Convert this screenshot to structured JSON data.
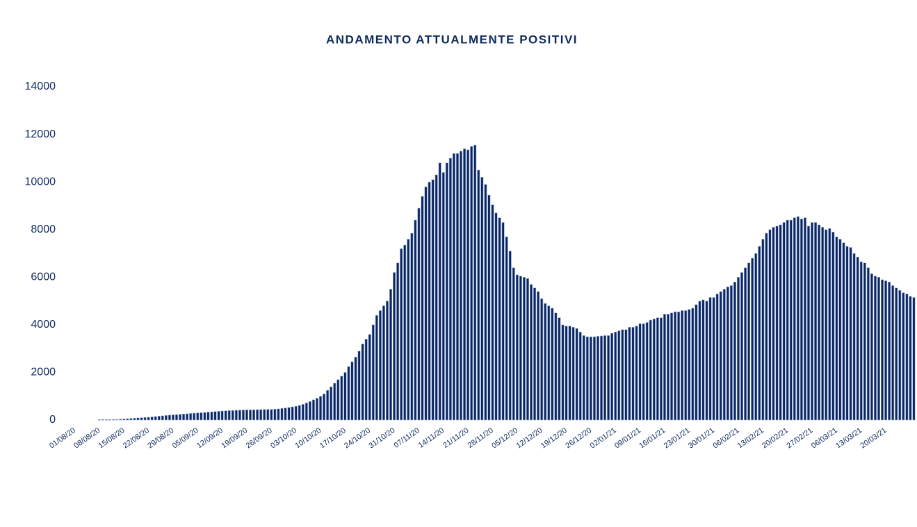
{
  "chart_data": {
    "type": "bar",
    "title": "ANDAMENTO  ATTUALMENTE  POSITIVI",
    "color": "#0b2560",
    "categories": [
      "01/08/20",
      null,
      null,
      null,
      null,
      null,
      null,
      "08/08/20",
      null,
      null,
      null,
      null,
      null,
      null,
      "15/08/20",
      null,
      null,
      null,
      null,
      null,
      null,
      "22/08/20",
      null,
      null,
      null,
      null,
      null,
      null,
      "29/08/20",
      null,
      null,
      null,
      null,
      null,
      null,
      "05/09/20",
      null,
      null,
      null,
      null,
      null,
      null,
      "12/09/20",
      null,
      null,
      null,
      null,
      null,
      null,
      "19/09/20",
      null,
      null,
      null,
      null,
      null,
      null,
      "26/09/20",
      null,
      null,
      null,
      null,
      null,
      null,
      "03/10/20",
      null,
      null,
      null,
      null,
      null,
      null,
      "10/10/20",
      null,
      null,
      null,
      null,
      null,
      null,
      "17/10/20",
      null,
      null,
      null,
      null,
      null,
      null,
      "24/10/20",
      null,
      null,
      null,
      null,
      null,
      null,
      "31/10/20",
      null,
      null,
      null,
      null,
      null,
      null,
      "07/11/20",
      null,
      null,
      null,
      null,
      null,
      null,
      "14/11/20",
      null,
      null,
      null,
      null,
      null,
      null,
      "21/11/20",
      null,
      null,
      null,
      null,
      null,
      null,
      "28/11/20",
      null,
      null,
      null,
      null,
      null,
      null,
      "05/12/20",
      null,
      null,
      null,
      null,
      null,
      null,
      "12/12/20",
      null,
      null,
      null,
      null,
      null,
      null,
      "19/12/20",
      null,
      null,
      null,
      null,
      null,
      null,
      "26/12/20",
      null,
      null,
      null,
      null,
      null,
      null,
      "02/01/21",
      null,
      null,
      null,
      null,
      null,
      null,
      "09/01/21",
      null,
      null,
      null,
      null,
      null,
      null,
      "16/01/21",
      null,
      null,
      null,
      null,
      null,
      null,
      "23/01/21",
      null,
      null,
      null,
      null,
      null,
      null,
      "30/01/21",
      null,
      null,
      null,
      null,
      null,
      null,
      "06/02/21",
      null,
      null,
      null,
      null,
      null,
      null,
      "13/02/21",
      null,
      null,
      null,
      null,
      null,
      null,
      "20/02/21",
      null,
      null,
      null,
      null,
      null,
      null,
      "27/02/21",
      null,
      null,
      null,
      null,
      null,
      null,
      "06/03/21",
      null,
      null,
      null,
      null,
      null,
      null,
      "13/03/21",
      null,
      null,
      null,
      null,
      null,
      null,
      "20/03/21",
      null,
      null,
      null,
      null,
      null,
      null,
      null,
      null
    ],
    "values": [
      null,
      null,
      null,
      null,
      null,
      null,
      null,
      20,
      20,
      20,
      25,
      25,
      30,
      40,
      50,
      60,
      70,
      80,
      90,
      100,
      110,
      120,
      135,
      150,
      165,
      180,
      195,
      210,
      220,
      230,
      245,
      255,
      265,
      280,
      290,
      300,
      310,
      320,
      335,
      345,
      360,
      370,
      380,
      390,
      400,
      405,
      415,
      420,
      425,
      430,
      430,
      435,
      440,
      440,
      445,
      450,
      450,
      460,
      470,
      490,
      510,
      530,
      555,
      580,
      620,
      660,
      720,
      780,
      850,
      920,
      1000,
      1100,
      1250,
      1400,
      1550,
      1700,
      1850,
      2000,
      2250,
      2450,
      2650,
      2900,
      3200,
      3400,
      3600,
      4000,
      4400,
      4600,
      4800,
      5000,
      5500,
      6200,
      6600,
      7200,
      7350,
      7600,
      7850,
      8400,
      8900,
      9400,
      9800,
      10000,
      10100,
      10300,
      10800,
      10400,
      10800,
      11000,
      11200,
      11200,
      11300,
      11400,
      11350,
      11500,
      11550,
      10500,
      10200,
      9900,
      9450,
      9050,
      8700,
      8500,
      8300,
      7700,
      7100,
      6400,
      6100,
      6050,
      6000,
      5950,
      5700,
      5550,
      5400,
      5100,
      4900,
      4800,
      4700,
      4500,
      4300,
      4000,
      3950,
      3950,
      3900,
      3850,
      3700,
      3550,
      3500,
      3500,
      3500,
      3520,
      3530,
      3550,
      3550,
      3650,
      3700,
      3750,
      3800,
      3800,
      3900,
      3900,
      3950,
      4050,
      4050,
      4100,
      4200,
      4250,
      4300,
      4300,
      4450,
      4450,
      4500,
      4550,
      4550,
      4600,
      4600,
      4650,
      4700,
      4850,
      5000,
      5050,
      5000,
      5150,
      5150,
      5300,
      5400,
      5500,
      5600,
      5650,
      5800,
      6000,
      6200,
      6400,
      6600,
      6800,
      7000,
      7300,
      7600,
      7850,
      8000,
      8100,
      8150,
      8200,
      8300,
      8400,
      8400,
      8500,
      8550,
      8450,
      8500,
      8150,
      8300,
      8300,
      8200,
      8100,
      8000,
      8050,
      7900,
      7700,
      7600,
      7450,
      7300,
      7250,
      7000,
      6850,
      6650,
      6600,
      6400,
      6150,
      6050,
      6000,
      5900,
      5850,
      5800,
      5650,
      5550,
      5450,
      5350,
      5300,
      5200,
      5150
    ],
    "ylim": [
      0,
      14000
    ],
    "yticks": [
      0,
      2000,
      4000,
      6000,
      8000,
      10000,
      12000,
      14000
    ],
    "grid": false
  }
}
